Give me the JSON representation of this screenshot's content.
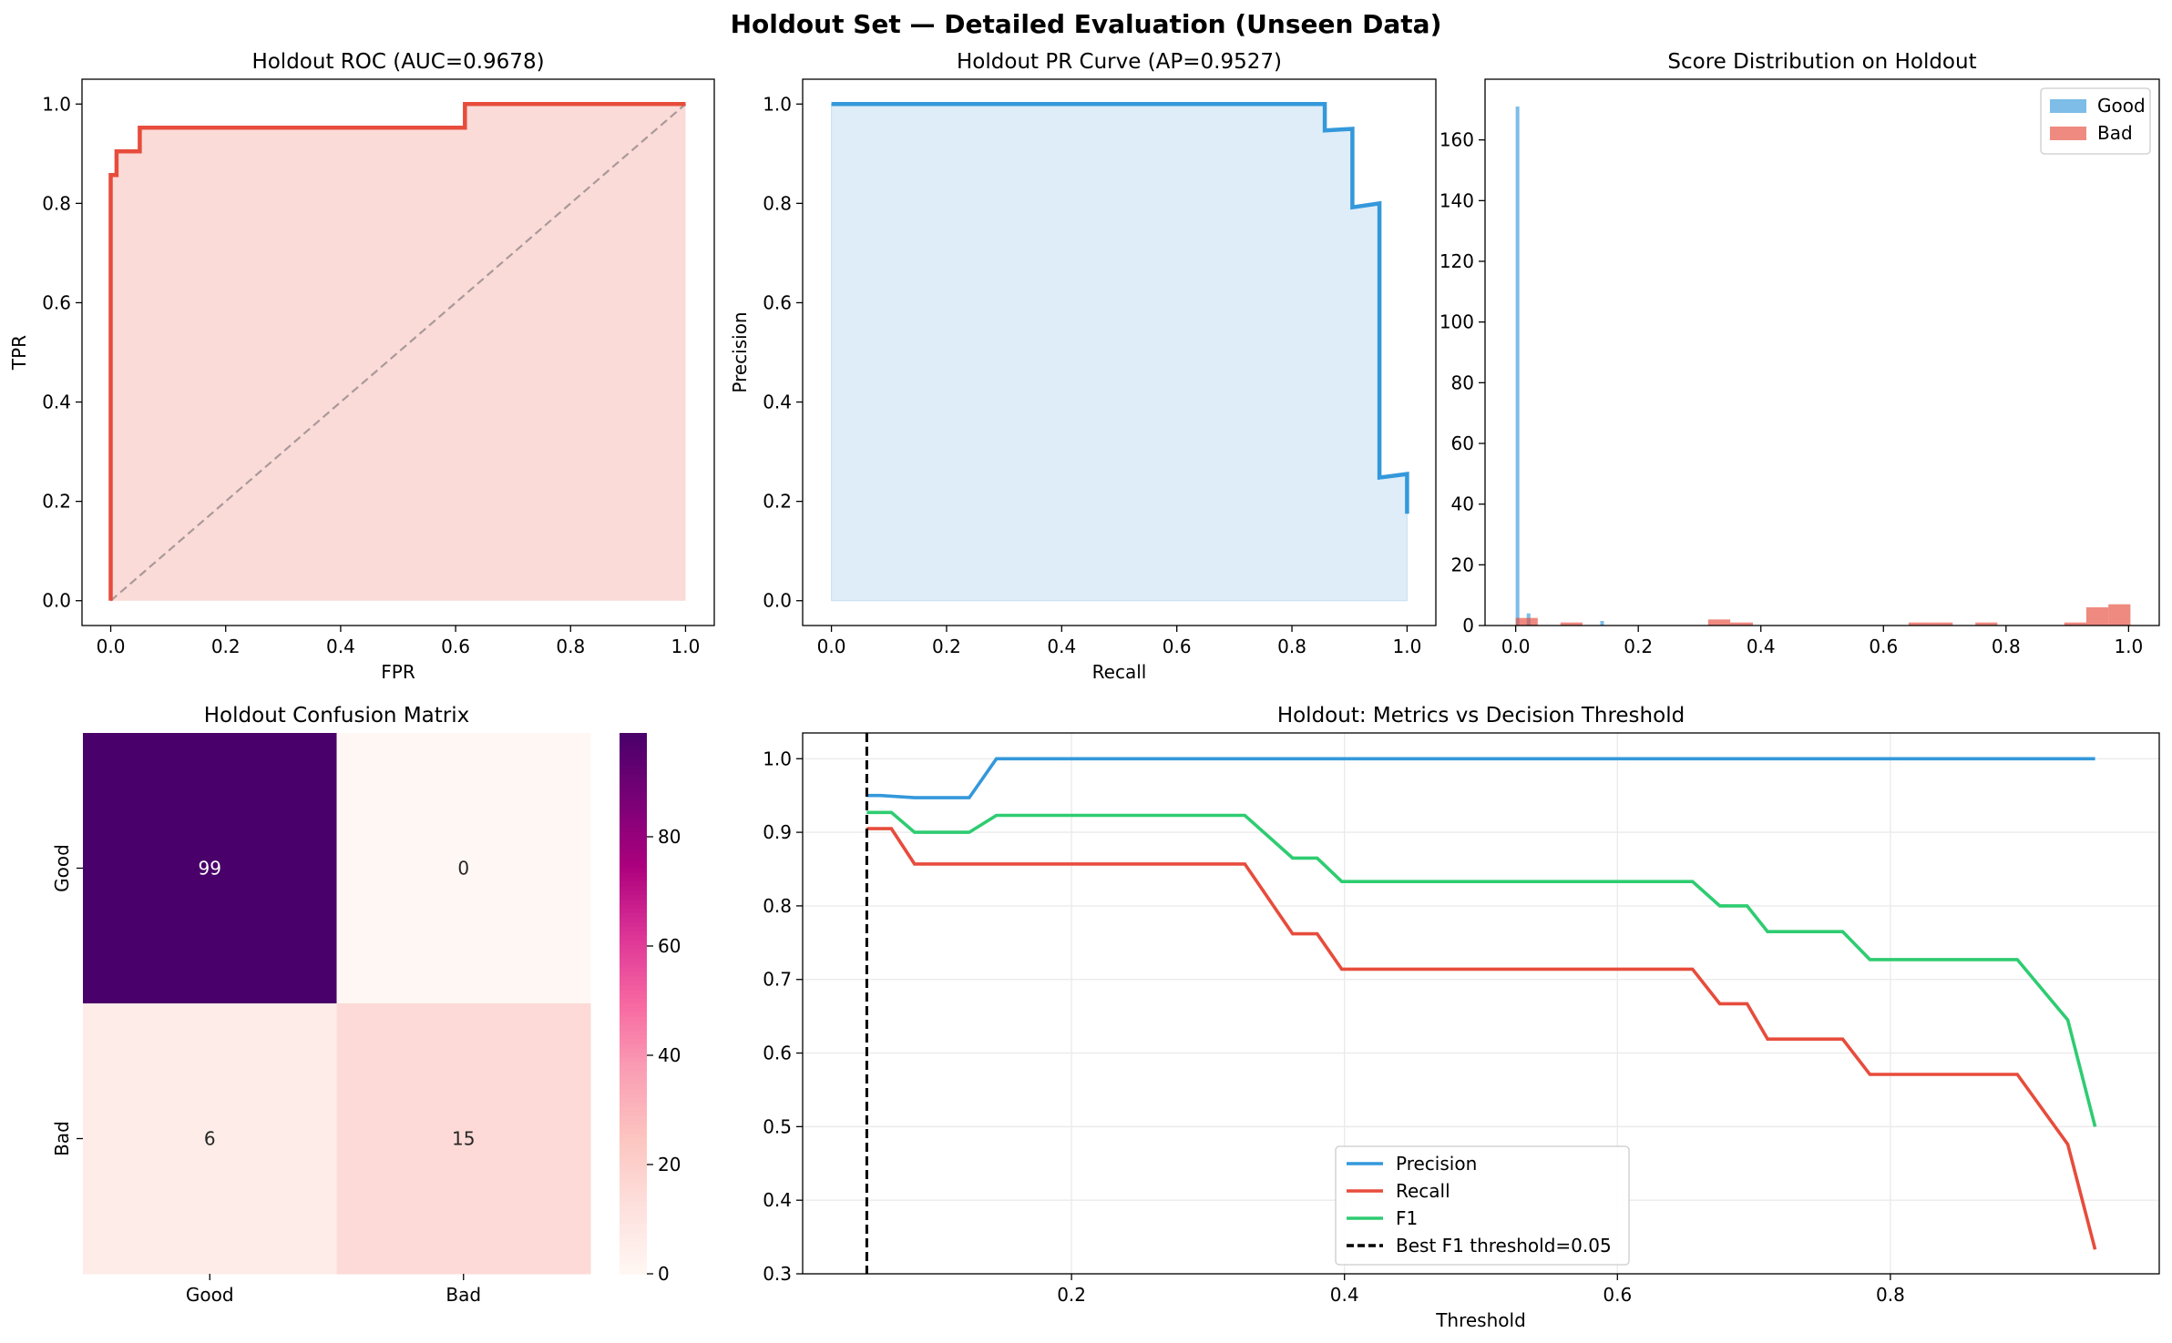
{
  "suptitle": "Holdout Set — Detailed Evaluation (Unseen Data)",
  "chart_data": [
    {
      "id": "roc",
      "type": "line",
      "title": "Holdout ROC (AUC=0.9678)",
      "xlabel": "FPR",
      "ylabel": "TPR",
      "xlim": [
        -0.05,
        1.05
      ],
      "ylim": [
        -0.05,
        1.05
      ],
      "xticks": [
        0.0,
        0.2,
        0.4,
        0.6,
        0.8,
        1.0
      ],
      "yticks": [
        0.0,
        0.2,
        0.4,
        0.6,
        0.8,
        1.0
      ],
      "tick_decimals": 1,
      "grid": false,
      "series": [
        {
          "color": "#e74c3c",
          "fill": "#fadbd8",
          "x": [
            0.0,
            0.0,
            0.0,
            0.0,
            0.0101,
            0.0101,
            0.0505,
            0.0505,
            0.6162,
            0.6162,
            1.0
          ],
          "y": [
            0.0,
            0.0476,
            0.8571,
            0.8571,
            0.8571,
            0.9048,
            0.9048,
            0.9524,
            0.9524,
            1.0,
            1.0
          ]
        }
      ],
      "reference_line": {
        "x": [
          0,
          1
        ],
        "y": [
          0,
          1
        ],
        "color": "#aa9999",
        "dash": true
      }
    },
    {
      "id": "pr",
      "type": "line",
      "title": "Holdout PR Curve (AP=0.9527)",
      "xlabel": "Recall",
      "ylabel": "Precision",
      "xlim": [
        -0.05,
        1.05
      ],
      "ylim": [
        -0.05,
        1.05
      ],
      "xticks": [
        0.0,
        0.2,
        0.4,
        0.6,
        0.8,
        1.0
      ],
      "yticks": [
        0.0,
        0.2,
        0.4,
        0.6,
        0.8,
        1.0
      ],
      "tick_decimals": 1,
      "grid": false,
      "series": [
        {
          "color": "#3498db",
          "fill": "#deedf8",
          "x": [
            0.0,
            0.857,
            0.857,
            0.905,
            0.905,
            0.952,
            0.952,
            1.0,
            1.0
          ],
          "y": [
            1.0,
            1.0,
            0.947,
            0.95,
            0.792,
            0.8,
            0.248,
            0.255,
            0.175
          ]
        }
      ]
    },
    {
      "id": "dist",
      "type": "bar",
      "title": "Score Distribution on Holdout",
      "xlim": [
        -0.05,
        1.05
      ],
      "ylim": [
        0,
        180
      ],
      "xticks": [
        0.0,
        0.2,
        0.4,
        0.6,
        0.8,
        1.0
      ],
      "yticks": [
        0,
        20,
        40,
        60,
        80,
        100,
        120,
        140,
        160
      ],
      "tick_decimals_x": 1,
      "tick_decimals_y": 0,
      "legend": "top-right",
      "series": [
        {
          "name": "Good",
          "color": "#5dade2",
          "opacity": 0.8,
          "bars": [
            [
              0.0,
              0.006,
              171
            ],
            [
              0.018,
              0.024,
              4
            ],
            [
              0.138,
              0.144,
              1.5
            ]
          ]
        },
        {
          "name": "Bad",
          "color": "#e74c3c",
          "opacity": 0.65,
          "bars": [
            [
              0.0,
              0.036,
              2.5
            ],
            [
              0.073,
              0.109,
              1
            ],
            [
              0.314,
              0.35,
              2
            ],
            [
              0.35,
              0.387,
              1
            ],
            [
              0.641,
              0.677,
              1
            ],
            [
              0.677,
              0.713,
              1
            ],
            [
              0.75,
              0.786,
              1
            ],
            [
              0.895,
              0.931,
              1
            ],
            [
              0.931,
              0.967,
              6
            ],
            [
              0.967,
              1.003,
              7
            ]
          ]
        }
      ]
    },
    {
      "id": "cm",
      "type": "heatmap",
      "title": "Holdout Confusion Matrix",
      "row_labels": [
        "Good",
        "Bad"
      ],
      "col_labels": [
        "Good",
        "Bad"
      ],
      "values": [
        [
          99,
          0
        ],
        [
          6,
          15
        ]
      ],
      "colormap": "RdPu",
      "vmin": 0,
      "vmax": 99,
      "colorbar_ticks": [
        0,
        20,
        40,
        60,
        80
      ]
    },
    {
      "id": "metrics",
      "type": "line",
      "title": "Holdout: Metrics vs Decision Threshold",
      "xlabel": "Threshold",
      "xlim": [
        0.003,
        0.997
      ],
      "ylim": [
        0.3,
        1.035
      ],
      "xticks": [
        0.2,
        0.4,
        0.6,
        0.8
      ],
      "yticks": [
        0.3,
        0.4,
        0.5,
        0.6,
        0.7,
        0.8,
        0.9,
        1.0
      ],
      "tick_decimals": 1,
      "grid": true,
      "legend": "lower-center",
      "threshold_line": {
        "x": 0.05,
        "label": "Best F1 threshold=0.05"
      },
      "series": [
        {
          "name": "Precision",
          "color": "#3498db",
          "x": [
            0.05,
            0.06,
            0.085,
            0.1,
            0.125,
            0.145,
            0.33,
            0.36,
            0.38,
            0.4,
            0.655,
            0.675,
            0.695,
            0.71,
            0.765,
            0.785,
            0.89,
            0.93,
            0.95
          ],
          "y": [
            0.95,
            0.95,
            0.947,
            0.947,
            0.947,
            1.0,
            1.0,
            1.0,
            1.0,
            1.0,
            1.0,
            1.0,
            1.0,
            1.0,
            1.0,
            1.0,
            1.0,
            1.0,
            1.0
          ]
        },
        {
          "name": "Recall",
          "color": "#e74c3c",
          "x": [
            0.05,
            0.068,
            0.085,
            0.1,
            0.125,
            0.145,
            0.327,
            0.362,
            0.38,
            0.398,
            0.655,
            0.675,
            0.695,
            0.71,
            0.765,
            0.785,
            0.893,
            0.93,
            0.95
          ],
          "y": [
            0.905,
            0.905,
            0.857,
            0.857,
            0.857,
            0.857,
            0.857,
            0.762,
            0.762,
            0.714,
            0.714,
            0.667,
            0.667,
            0.619,
            0.619,
            0.571,
            0.571,
            0.476,
            0.333
          ]
        },
        {
          "name": "F1",
          "color": "#2ecc71",
          "x": [
            0.05,
            0.068,
            0.085,
            0.1,
            0.125,
            0.145,
            0.327,
            0.362,
            0.38,
            0.398,
            0.655,
            0.675,
            0.695,
            0.71,
            0.765,
            0.785,
            0.893,
            0.93,
            0.95
          ],
          "y": [
            0.927,
            0.927,
            0.9,
            0.9,
            0.9,
            0.923,
            0.923,
            0.865,
            0.865,
            0.833,
            0.833,
            0.8,
            0.8,
            0.765,
            0.765,
            0.727,
            0.727,
            0.645,
            0.5
          ]
        }
      ]
    }
  ]
}
